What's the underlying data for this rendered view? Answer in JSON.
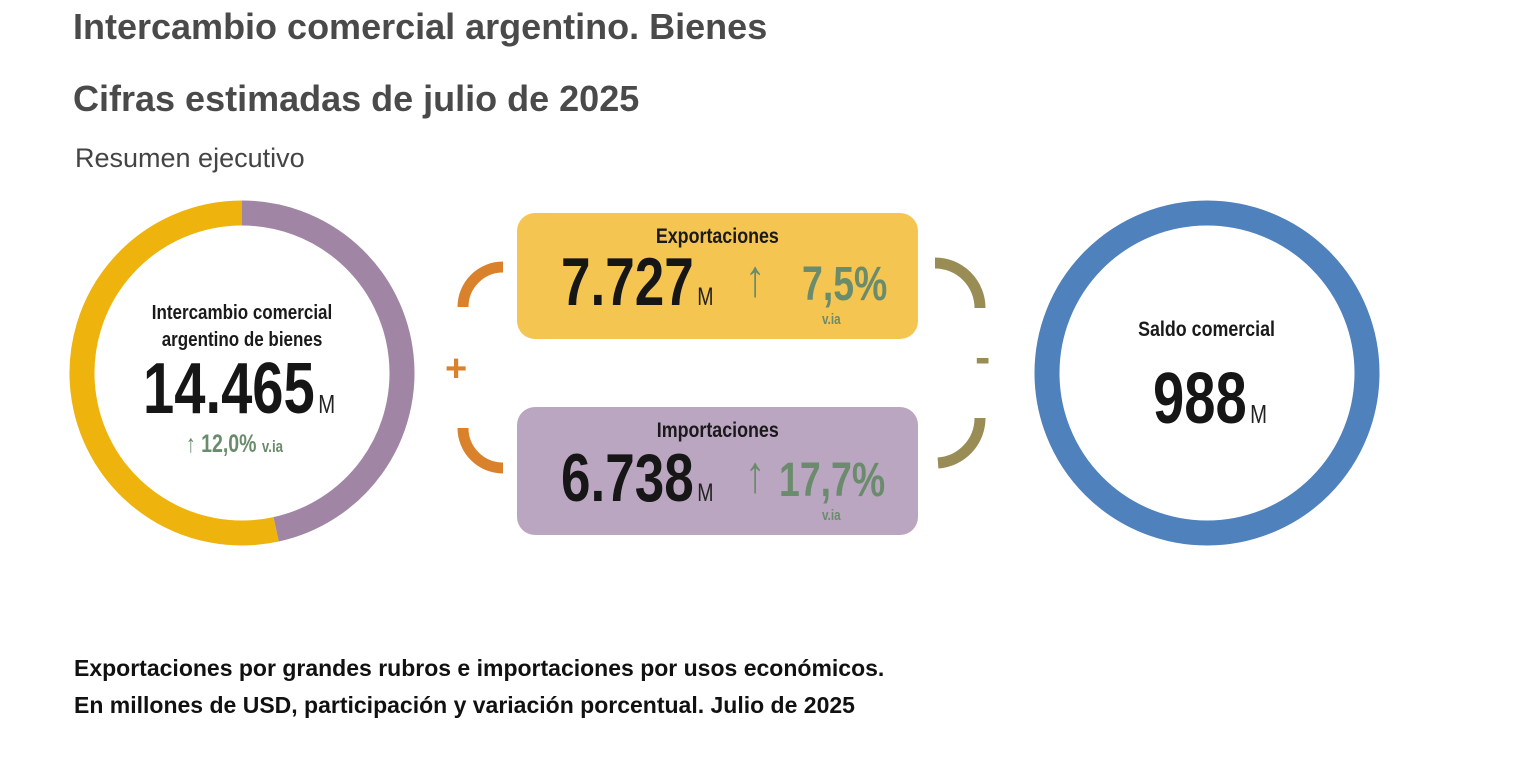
{
  "header": {
    "title": "Intercambio comercial argentino. Bienes",
    "subtitle": "Cifras estimadas de julio de 2025",
    "section": "Resumen ejecutivo"
  },
  "total": {
    "label_line1": "Intercambio comercial",
    "label_line2": "argentino de bienes",
    "value": "14.465",
    "unit": "M",
    "change": "12,0%",
    "change_suffix": "v.ia",
    "direction": "up"
  },
  "exports": {
    "label": "Exportaciones",
    "value": "7.727",
    "unit": "M",
    "change": "7,5%",
    "change_suffix": "v.ia",
    "direction": "up",
    "color": "#f5c551"
  },
  "imports": {
    "label": "Importaciones",
    "value": "6.738",
    "unit": "M",
    "change": "17,7%",
    "change_suffix": "v.ia",
    "direction": "up",
    "color": "#bba6c1"
  },
  "operators": {
    "plus": "+",
    "minus": "-"
  },
  "balance": {
    "label": "Saldo comercial",
    "value": "988",
    "unit": "M",
    "color": "#4f81bd"
  },
  "footer": {
    "line1": "Exportaciones por grandes rubros e importaciones por usos económicos.",
    "line2": "En millones de USD, participación y variación porcentual. Julio de 2025"
  },
  "chart_data": {
    "type": "pie",
    "donut": true,
    "categories": [
      "Exportaciones",
      "Importaciones"
    ],
    "values": [
      7727,
      6738
    ],
    "colors": [
      "#eeb30c",
      "#a085a5"
    ]
  }
}
